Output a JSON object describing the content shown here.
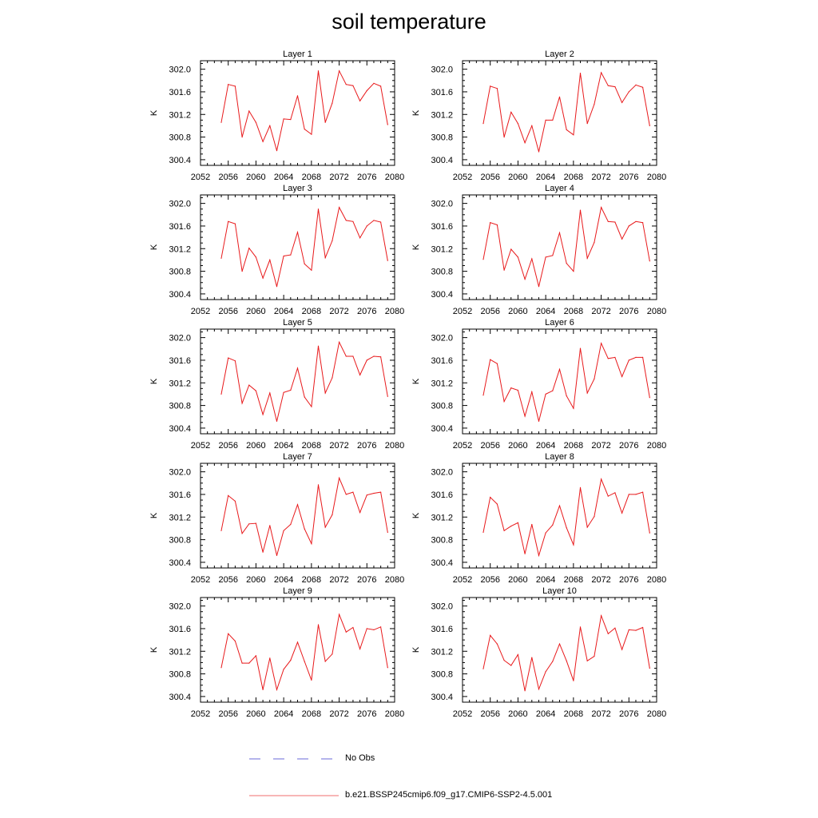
{
  "title": "soil temperature",
  "legend": {
    "entries": [
      {
        "label": "No Obs",
        "color": "#6a6ad8",
        "style": "dashed"
      },
      {
        "label": "b.e21.BSSP245cmip6.f09_g17.CMIP6-SSP2-4.5.001",
        "color": "#f26c6c",
        "style": "solid"
      }
    ]
  },
  "colors": {
    "series": "#e8191b",
    "axis": "#000000"
  },
  "chart_data": [
    {
      "type": "line",
      "title": "Layer 1",
      "ylabel": "K",
      "xlim": [
        2052,
        2080
      ],
      "ylim": [
        300.3,
        302.15
      ],
      "xticks": [
        "2052",
        "2056",
        "2060",
        "2064",
        "2068",
        "2072",
        "2076",
        "2080"
      ],
      "yticks": [
        "300.4",
        "300.8",
        "301.2",
        "301.6",
        "302.0"
      ],
      "x": [
        2055,
        2056,
        2057,
        2058,
        2059,
        2060,
        2061,
        2062,
        2063,
        2064,
        2065,
        2066,
        2067,
        2068,
        2069,
        2070,
        2071,
        2072,
        2073,
        2074,
        2075,
        2076,
        2077,
        2078,
        2079
      ],
      "series": [
        {
          "values": [
            301.06,
            301.73,
            301.7,
            300.8,
            301.26,
            301.06,
            300.72,
            301.0,
            300.56,
            301.12,
            301.11,
            301.53,
            300.94,
            300.85,
            301.97,
            301.06,
            301.4,
            301.97,
            301.73,
            301.71,
            301.44,
            301.62,
            301.75,
            301.7,
            301.02
          ]
        }
      ]
    },
    {
      "type": "line",
      "title": "Layer 2",
      "ylabel": "K",
      "xlim": [
        2052,
        2080
      ],
      "ylim": [
        300.3,
        302.15
      ],
      "xticks": [
        "2052",
        "2056",
        "2060",
        "2064",
        "2068",
        "2072",
        "2076",
        "2080"
      ],
      "yticks": [
        "300.4",
        "300.8",
        "301.2",
        "301.6",
        "302.0"
      ],
      "x": [
        2055,
        2056,
        2057,
        2058,
        2059,
        2060,
        2061,
        2062,
        2063,
        2064,
        2065,
        2066,
        2067,
        2068,
        2069,
        2070,
        2071,
        2072,
        2073,
        2074,
        2075,
        2076,
        2077,
        2078,
        2079
      ],
      "series": [
        {
          "values": [
            301.04,
            301.7,
            301.66,
            300.8,
            301.24,
            301.04,
            300.7,
            301.0,
            300.54,
            301.1,
            301.1,
            301.51,
            300.93,
            300.84,
            301.93,
            301.04,
            301.38,
            301.94,
            301.71,
            301.69,
            301.41,
            301.6,
            301.72,
            301.68,
            301.0
          ]
        }
      ]
    },
    {
      "type": "line",
      "title": "Layer 3",
      "ylabel": "K",
      "xlim": [
        2052,
        2080
      ],
      "ylim": [
        300.3,
        302.15
      ],
      "xticks": [
        "2052",
        "2056",
        "2060",
        "2064",
        "2068",
        "2072",
        "2076",
        "2080"
      ],
      "yticks": [
        "300.4",
        "300.8",
        "301.2",
        "301.6",
        "302.0"
      ],
      "x": [
        2055,
        2056,
        2057,
        2058,
        2059,
        2060,
        2061,
        2062,
        2063,
        2064,
        2065,
        2066,
        2067,
        2068,
        2069,
        2070,
        2071,
        2072,
        2073,
        2074,
        2075,
        2076,
        2077,
        2078,
        2079
      ],
      "series": [
        {
          "values": [
            301.03,
            301.68,
            301.64,
            300.8,
            301.21,
            301.05,
            300.68,
            301.0,
            300.53,
            301.07,
            301.09,
            301.49,
            300.93,
            300.82,
            301.9,
            301.04,
            301.34,
            301.93,
            301.7,
            301.68,
            301.39,
            301.6,
            301.7,
            301.67,
            300.99
          ]
        }
      ]
    },
    {
      "type": "line",
      "title": "Layer 4",
      "ylabel": "K",
      "xlim": [
        2052,
        2080
      ],
      "ylim": [
        300.3,
        302.15
      ],
      "xticks": [
        "2052",
        "2056",
        "2060",
        "2064",
        "2068",
        "2072",
        "2076",
        "2080"
      ],
      "yticks": [
        "300.4",
        "300.8",
        "301.2",
        "301.6",
        "302.0"
      ],
      "x": [
        2055,
        2056,
        2057,
        2058,
        2059,
        2060,
        2061,
        2062,
        2063,
        2064,
        2065,
        2066,
        2067,
        2068,
        2069,
        2070,
        2071,
        2072,
        2073,
        2074,
        2075,
        2076,
        2077,
        2078,
        2079
      ],
      "series": [
        {
          "values": [
            301.01,
            301.66,
            301.62,
            300.82,
            301.19,
            301.05,
            300.66,
            301.02,
            300.53,
            301.05,
            301.08,
            301.48,
            300.94,
            300.8,
            301.88,
            301.03,
            301.31,
            301.93,
            301.68,
            301.67,
            301.37,
            301.6,
            301.68,
            301.66,
            300.98
          ]
        }
      ]
    },
    {
      "type": "line",
      "title": "Layer 5",
      "ylabel": "K",
      "xlim": [
        2052,
        2080
      ],
      "ylim": [
        300.3,
        302.15
      ],
      "xticks": [
        "2052",
        "2056",
        "2060",
        "2064",
        "2068",
        "2072",
        "2076",
        "2080"
      ],
      "yticks": [
        "300.4",
        "300.8",
        "301.2",
        "301.6",
        "302.0"
      ],
      "x": [
        2055,
        2056,
        2057,
        2058,
        2059,
        2060,
        2061,
        2062,
        2063,
        2064,
        2065,
        2066,
        2067,
        2068,
        2069,
        2070,
        2071,
        2072,
        2073,
        2074,
        2075,
        2076,
        2077,
        2078,
        2079
      ],
      "series": [
        {
          "values": [
            301.0,
            301.64,
            301.59,
            300.84,
            301.16,
            301.06,
            300.64,
            301.02,
            300.52,
            301.03,
            301.07,
            301.46,
            300.95,
            300.78,
            301.85,
            301.02,
            301.29,
            301.92,
            301.67,
            301.67,
            301.34,
            301.6,
            301.67,
            301.66,
            300.96
          ]
        }
      ]
    },
    {
      "type": "line",
      "title": "Layer 6",
      "ylabel": "K",
      "xlim": [
        2052,
        2080
      ],
      "ylim": [
        300.3,
        302.15
      ],
      "xticks": [
        "2052",
        "2056",
        "2060",
        "2064",
        "2068",
        "2072",
        "2076",
        "2080"
      ],
      "yticks": [
        "300.4",
        "300.8",
        "301.2",
        "301.6",
        "302.0"
      ],
      "x": [
        2055,
        2056,
        2057,
        2058,
        2059,
        2060,
        2061,
        2062,
        2063,
        2064,
        2065,
        2066,
        2067,
        2068,
        2069,
        2070,
        2071,
        2072,
        2073,
        2074,
        2075,
        2076,
        2077,
        2078,
        2079
      ],
      "series": [
        {
          "values": [
            300.98,
            301.61,
            301.54,
            300.87,
            301.11,
            301.07,
            300.61,
            301.04,
            300.52,
            301.0,
            301.06,
            301.44,
            300.97,
            300.75,
            301.81,
            301.02,
            301.27,
            301.9,
            301.63,
            301.65,
            301.31,
            301.6,
            301.65,
            301.65,
            300.94
          ]
        }
      ]
    },
    {
      "type": "line",
      "title": "Layer 7",
      "ylabel": "K",
      "xlim": [
        2052,
        2080
      ],
      "ylim": [
        300.3,
        302.15
      ],
      "xticks": [
        "2052",
        "2056",
        "2060",
        "2064",
        "2068",
        "2072",
        "2076",
        "2080"
      ],
      "yticks": [
        "300.4",
        "300.8",
        "301.2",
        "301.6",
        "302.0"
      ],
      "x": [
        2055,
        2056,
        2057,
        2058,
        2059,
        2060,
        2061,
        2062,
        2063,
        2064,
        2065,
        2066,
        2067,
        2068,
        2069,
        2070,
        2071,
        2072,
        2073,
        2074,
        2075,
        2076,
        2077,
        2078,
        2079
      ],
      "series": [
        {
          "values": [
            300.96,
            301.58,
            301.48,
            300.91,
            301.08,
            301.09,
            300.58,
            301.05,
            300.52,
            300.96,
            301.07,
            301.42,
            300.99,
            300.73,
            301.77,
            301.02,
            301.24,
            301.89,
            301.6,
            301.64,
            301.28,
            301.59,
            301.62,
            301.64,
            300.93
          ]
        }
      ]
    },
    {
      "type": "line",
      "title": "Layer 8",
      "ylabel": "K",
      "xlim": [
        2052,
        2080
      ],
      "ylim": [
        300.3,
        302.15
      ],
      "xticks": [
        "2052",
        "2056",
        "2060",
        "2064",
        "2068",
        "2072",
        "2076",
        "2080"
      ],
      "yticks": [
        "300.4",
        "300.8",
        "301.2",
        "301.6",
        "302.0"
      ],
      "x": [
        2055,
        2056,
        2057,
        2058,
        2059,
        2060,
        2061,
        2062,
        2063,
        2064,
        2065,
        2066,
        2067,
        2068,
        2069,
        2070,
        2071,
        2072,
        2073,
        2074,
        2075,
        2076,
        2077,
        2078,
        2079
      ],
      "series": [
        {
          "values": [
            300.93,
            301.55,
            301.43,
            300.96,
            301.04,
            301.1,
            300.55,
            301.07,
            300.52,
            300.92,
            301.06,
            301.4,
            301.01,
            300.71,
            301.72,
            301.02,
            301.21,
            301.87,
            301.57,
            301.63,
            301.27,
            301.6,
            301.6,
            301.64,
            300.92
          ]
        }
      ]
    },
    {
      "type": "line",
      "title": "Layer 9",
      "ylabel": "K",
      "xlim": [
        2052,
        2080
      ],
      "ylim": [
        300.3,
        302.15
      ],
      "xticks": [
        "2052",
        "2056",
        "2060",
        "2064",
        "2068",
        "2072",
        "2076",
        "2080"
      ],
      "yticks": [
        "300.4",
        "300.8",
        "301.2",
        "301.6",
        "302.0"
      ],
      "x": [
        2055,
        2056,
        2057,
        2058,
        2059,
        2060,
        2061,
        2062,
        2063,
        2064,
        2065,
        2066,
        2067,
        2068,
        2069,
        2070,
        2071,
        2072,
        2073,
        2074,
        2075,
        2076,
        2077,
        2078,
        2079
      ],
      "series": [
        {
          "values": [
            300.91,
            301.51,
            301.38,
            300.99,
            300.99,
            301.12,
            300.52,
            301.08,
            300.52,
            300.88,
            301.04,
            301.36,
            301.02,
            300.69,
            301.67,
            301.02,
            301.15,
            301.85,
            301.54,
            301.62,
            301.24,
            301.6,
            301.58,
            301.63,
            300.91
          ]
        }
      ]
    },
    {
      "type": "line",
      "title": "Layer 10",
      "ylabel": "K",
      "xlim": [
        2052,
        2080
      ],
      "ylim": [
        300.3,
        302.15
      ],
      "xticks": [
        "2052",
        "2056",
        "2060",
        "2064",
        "2068",
        "2072",
        "2076",
        "2080"
      ],
      "yticks": [
        "300.4",
        "300.8",
        "301.2",
        "301.6",
        "302.0"
      ],
      "x": [
        2055,
        2056,
        2057,
        2058,
        2059,
        2060,
        2061,
        2062,
        2063,
        2064,
        2065,
        2066,
        2067,
        2068,
        2069,
        2070,
        2071,
        2072,
        2073,
        2074,
        2075,
        2076,
        2077,
        2078,
        2079
      ],
      "series": [
        {
          "values": [
            300.89,
            301.48,
            301.33,
            301.04,
            300.95,
            301.14,
            300.5,
            301.09,
            300.53,
            300.84,
            301.02,
            301.33,
            301.03,
            300.68,
            301.63,
            301.03,
            301.11,
            301.83,
            301.51,
            301.61,
            301.23,
            301.58,
            301.57,
            301.62,
            300.9
          ]
        }
      ]
    }
  ]
}
